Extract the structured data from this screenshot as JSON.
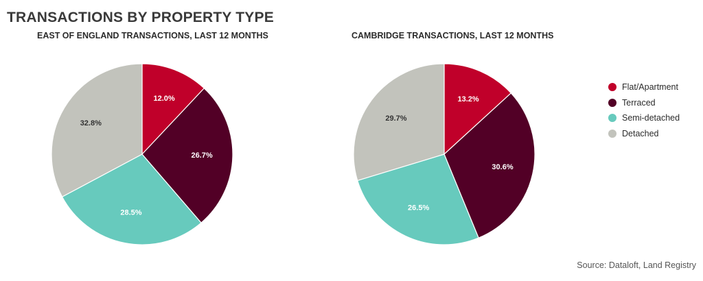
{
  "title": "TRANSACTIONS BY PROPERTY TYPE",
  "source": "Source: Dataloft, Land Registry",
  "legend": [
    {
      "label": "Flat/Apartment",
      "color": "#c0002a"
    },
    {
      "label": "Terraced",
      "color": "#520026"
    },
    {
      "label": "Semi-detached",
      "color": "#67cabd"
    },
    {
      "label": "Detached",
      "color": "#c2c3bc"
    }
  ],
  "chart_data": [
    {
      "type": "pie",
      "title": "EAST OF ENGLAND TRANSACTIONS, LAST 12 MONTHS",
      "categories": [
        "Flat/Apartment",
        "Terraced",
        "Semi-detached",
        "Detached"
      ],
      "values": [
        12.0,
        26.7,
        28.5,
        32.8
      ],
      "labels": [
        "12.0%",
        "26.7%",
        "28.5%",
        "32.8%"
      ],
      "label_colors": [
        "#ffffff",
        "#ffffff",
        "#ffffff",
        "#333333"
      ]
    },
    {
      "type": "pie",
      "title": "CAMBRIDGE TRANSACTIONS, LAST 12 MONTHS",
      "categories": [
        "Flat/Apartment",
        "Terraced",
        "Semi-detached",
        "Detached"
      ],
      "values": [
        13.2,
        30.6,
        26.5,
        29.7
      ],
      "labels": [
        "13.2%",
        "30.6%",
        "26.5%",
        "29.7%"
      ],
      "label_colors": [
        "#ffffff",
        "#ffffff",
        "#ffffff",
        "#333333"
      ]
    }
  ]
}
